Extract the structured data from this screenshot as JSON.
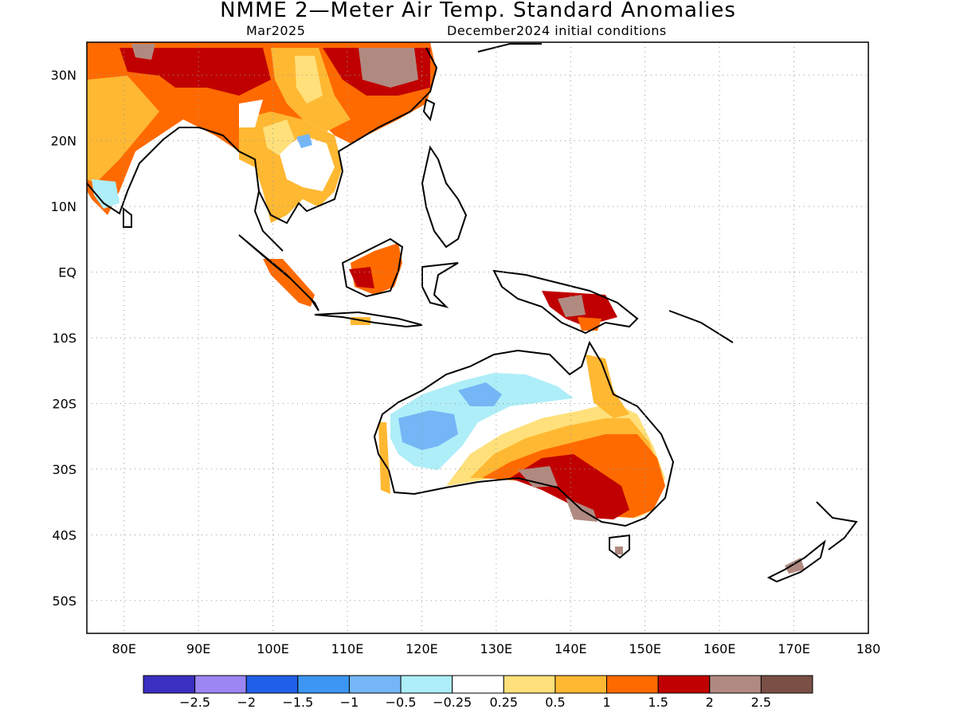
{
  "title": "NMME 2—Meter Air Temp. Standard Anomalies",
  "subtitle_left": "Mar2025",
  "subtitle_right": "December2024 initial conditions",
  "map": {
    "lon_range": [
      75,
      180
    ],
    "lat_range": [
      -55,
      35
    ],
    "lon_ticks": [
      80,
      90,
      100,
      110,
      120,
      130,
      140,
      150,
      160,
      170,
      180
    ],
    "lon_labels": [
      "80E",
      "90E",
      "100E",
      "110E",
      "120E",
      "130E",
      "140E",
      "150E",
      "160E",
      "170E",
      "180"
    ],
    "lat_ticks": [
      30,
      20,
      10,
      0,
      -10,
      -20,
      -30,
      -40,
      -50
    ],
    "lat_labels": [
      "30N",
      "20N",
      "10N",
      "EQ",
      "10S",
      "20S",
      "30S",
      "40S",
      "50S"
    ],
    "grid": "dotted"
  },
  "colorbar": {
    "colors": [
      "#3a2fc0",
      "#9b86f4",
      "#2060e8",
      "#3c96f2",
      "#74b6f6",
      "#aeeef8",
      "#ffffff",
      "#ffe07a",
      "#ffb832",
      "#ff6a00",
      "#c00000",
      "#b08a80",
      "#7a5046"
    ],
    "labels": [
      "−2.5",
      "−2",
      "−1.5",
      "−1",
      "−0.5",
      "−0.25",
      "0.25",
      "0.5",
      "1",
      "1.5",
      "2",
      "2.5"
    ]
  }
}
